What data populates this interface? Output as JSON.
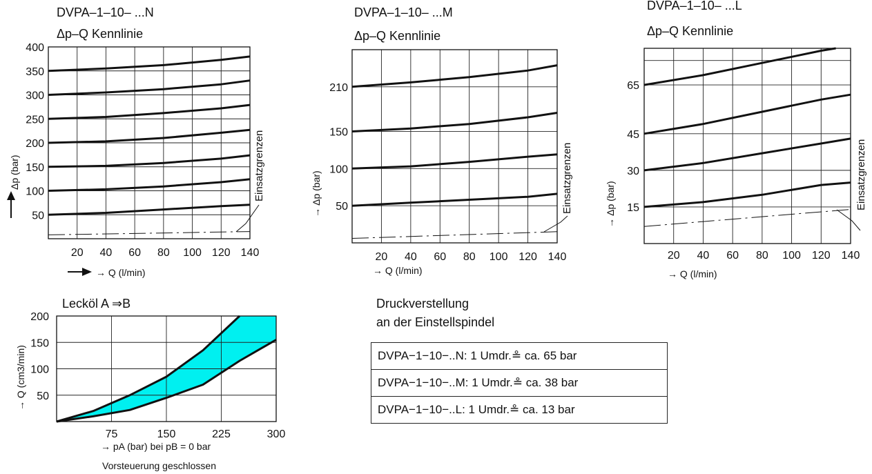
{
  "chart_data": [
    {
      "type": "line",
      "title": "DVPA–1–10– ...N",
      "subtitle": "Δp–Q Kennlinie",
      "xlabel": "→ Q (l/min)",
      "ylabel": "Δp (bar)",
      "side_label": "Einsatzgrenzen",
      "xlim": [
        0,
        140
      ],
      "ylim": [
        0,
        400
      ],
      "x_ticks": [
        20,
        40,
        60,
        80,
        100,
        120,
        140
      ],
      "y_ticks": [
        50,
        100,
        150,
        200,
        250,
        300,
        350,
        400
      ],
      "grid": true,
      "series": [
        {
          "x": [
            0,
            40,
            80,
            120,
            140
          ],
          "y": [
            350,
            355,
            362,
            373,
            380
          ]
        },
        {
          "x": [
            0,
            40,
            80,
            120,
            140
          ],
          "y": [
            300,
            305,
            312,
            322,
            330
          ]
        },
        {
          "x": [
            0,
            40,
            80,
            120,
            140
          ],
          "y": [
            250,
            254,
            262,
            272,
            279
          ]
        },
        {
          "x": [
            0,
            40,
            80,
            120,
            140
          ],
          "y": [
            200,
            203,
            210,
            221,
            227
          ]
        },
        {
          "x": [
            0,
            40,
            80,
            120,
            140
          ],
          "y": [
            150,
            152,
            158,
            167,
            174
          ]
        },
        {
          "x": [
            0,
            40,
            80,
            120,
            140
          ],
          "y": [
            100,
            103,
            109,
            118,
            124
          ]
        },
        {
          "x": [
            0,
            40,
            80,
            120,
            140
          ],
          "y": [
            50,
            54,
            61,
            68,
            71
          ]
        },
        {
          "x": [
            0,
            140
          ],
          "y": [
            8,
            15
          ],
          "style": "dashdot"
        }
      ]
    },
    {
      "type": "line",
      "title": "DVPA–1–10– ...M",
      "subtitle": "Δp–Q Kennlinie",
      "xlabel": "→ Q (l/min)",
      "ylabel": "→ Δp (bar)",
      "side_label": "Einsatzgrenzen",
      "xlim": [
        0,
        140
      ],
      "ylim": [
        0,
        260
      ],
      "x_ticks": [
        20,
        40,
        60,
        80,
        100,
        120,
        140
      ],
      "y_ticks": [
        50,
        100,
        150,
        210
      ],
      "grid": true,
      "series": [
        {
          "x": [
            0,
            40,
            80,
            120,
            140
          ],
          "y": [
            210,
            216,
            223,
            232,
            239
          ]
        },
        {
          "x": [
            0,
            40,
            80,
            120,
            140
          ],
          "y": [
            150,
            154,
            160,
            169,
            175
          ]
        },
        {
          "x": [
            0,
            40,
            80,
            120,
            140
          ],
          "y": [
            100,
            103,
            109,
            116,
            119
          ]
        },
        {
          "x": [
            0,
            40,
            80,
            120,
            140
          ],
          "y": [
            50,
            54,
            58,
            62,
            66
          ]
        },
        {
          "x": [
            0,
            140
          ],
          "y": [
            6,
            15
          ],
          "style": "dashdot"
        }
      ]
    },
    {
      "type": "line",
      "title": "DVPA–1–10– ...L",
      "subtitle": "Δp–Q Kennlinie",
      "xlabel": "→ Q (l/min)",
      "ylabel": "→ Δp (bar)",
      "side_label": "Einsatzgrenzen",
      "xlim": [
        0,
        140
      ],
      "ylim": [
        0,
        80
      ],
      "x_ticks": [
        20,
        40,
        60,
        80,
        100,
        120,
        140
      ],
      "y_ticks": [
        15,
        30,
        45,
        65
      ],
      "grid": true,
      "series": [
        {
          "x": [
            0,
            40,
            80,
            120,
            130
          ],
          "y": [
            65,
            69,
            74,
            79,
            80
          ]
        },
        {
          "x": [
            0,
            40,
            80,
            120,
            140
          ],
          "y": [
            45,
            49,
            54,
            59,
            61
          ]
        },
        {
          "x": [
            0,
            40,
            80,
            120,
            140
          ],
          "y": [
            30,
            33,
            37,
            41,
            43
          ]
        },
        {
          "x": [
            0,
            40,
            80,
            120,
            140
          ],
          "y": [
            15,
            17,
            20,
            24,
            25
          ]
        },
        {
          "x": [
            0,
            140
          ],
          "y": [
            7,
            14
          ],
          "style": "dashdot"
        }
      ]
    },
    {
      "type": "area",
      "title": "Lecköl A ⇒B",
      "xlabel": "→ pA (bar) bei pB = 0 bar",
      "ylabel": "→ Q (cm3/min)",
      "caption": "Vorsteuerung geschlossen",
      "xlim": [
        0,
        300
      ],
      "ylim": [
        0,
        200
      ],
      "x_ticks": [
        75,
        150,
        225,
        300
      ],
      "y_ticks": [
        50,
        100,
        150,
        200
      ],
      "grid": true,
      "fill_color": "#00f0f0",
      "series": [
        {
          "name": "upper",
          "x": [
            0,
            50,
            100,
            150,
            200,
            250
          ],
          "y": [
            0,
            20,
            50,
            85,
            135,
            200
          ]
        },
        {
          "name": "lower",
          "x": [
            0,
            50,
            100,
            150,
            200,
            250,
            300
          ],
          "y": [
            0,
            10,
            22,
            45,
            70,
            115,
            155
          ]
        }
      ]
    }
  ],
  "druck": {
    "title_line1": "Druckverstellung",
    "title_line2": "an der Einstellspindel",
    "rows": [
      "DVPA−1−10−..N: 1 Umdr.≗  ca. 65 bar",
      "DVPA−1−10−..M: 1 Umdr.≗  ca. 38 bar",
      "DVPA−1−10−..L:  1 Umdr.≗  ca. 13 bar"
    ]
  }
}
